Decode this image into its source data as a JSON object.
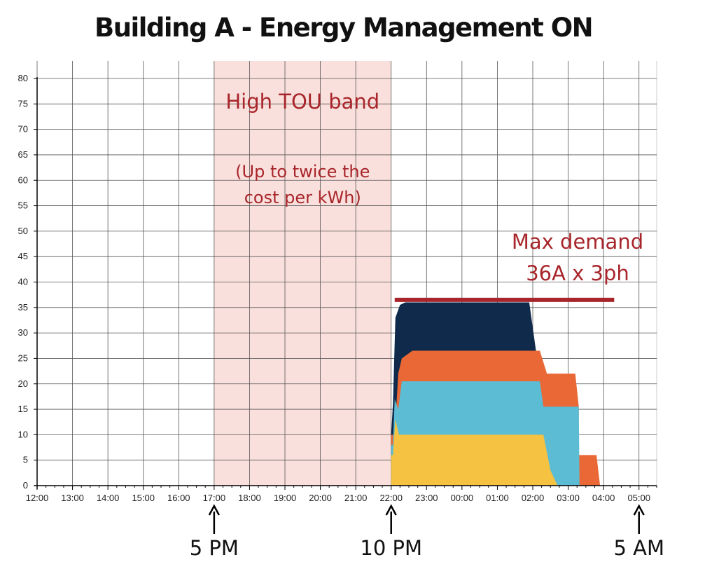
{
  "chart_data": {
    "type": "area",
    "title": "Building A - Energy Management ON",
    "xlabel": "",
    "ylabel": "",
    "x_ticks": [
      "12:00",
      "13:00",
      "14:00",
      "15:00",
      "16:00",
      "17:00",
      "18:00",
      "19:00",
      "20:00",
      "21:00",
      "22:00",
      "23:00",
      "00:00",
      "01:00",
      "02:00",
      "03:00",
      "04:00",
      "05:00"
    ],
    "y_ticks": [
      0,
      5,
      10,
      15,
      20,
      25,
      30,
      35,
      40,
      45,
      50,
      55,
      60,
      65,
      70,
      75,
      80
    ],
    "ylim": [
      0,
      80
    ],
    "x_range_hours": [
      0,
      17.5
    ],
    "grid": true,
    "stacked": true,
    "colors": {
      "yellow": "#f5c242",
      "blue": "#5bbcd3",
      "orange": "#ea6835",
      "navy": "#0f2a4a",
      "band": "#fae0dc",
      "annotation": "#a8262b",
      "maxline": "#a8262b"
    },
    "series_points": [
      {
        "color": "yellow",
        "x": [
          10.0,
          10.05,
          10.12,
          10.22,
          10.4,
          12.0,
          14.3,
          14.5,
          14.7
        ],
        "y": [
          6,
          6,
          13,
          10,
          10,
          10,
          10,
          3,
          0
        ]
      },
      {
        "color": "blue",
        "top_x": [
          10.0,
          10.05,
          10.1,
          10.2,
          10.3,
          12.0,
          14.2,
          14.3,
          15.2,
          15.3,
          15.32
        ],
        "top_y": [
          8,
          8,
          17,
          15,
          20.5,
          20.5,
          20.5,
          15.5,
          15.5,
          15.5,
          0
        ]
      },
      {
        "color": "orange",
        "top_x": [
          10.0,
          10.1,
          10.2,
          10.3,
          10.6,
          12.0,
          14.0,
          14.2,
          14.4,
          15.2,
          15.3,
          15.3,
          15.8,
          15.9,
          16.0
        ],
        "top_y": [
          10,
          10,
          22,
          25,
          26.5,
          26.5,
          26.5,
          26.5,
          22,
          22,
          15.5,
          6,
          6,
          0,
          0
        ]
      },
      {
        "color": "navy",
        "top_x": [
          10.0,
          10.05,
          10.12,
          10.25,
          10.4,
          12.0,
          13.9,
          14.1,
          14.2
        ],
        "top_y": [
          10,
          16,
          33,
          35.5,
          36,
          36,
          36,
          26,
          26.5
        ]
      }
    ],
    "bands": [
      {
        "from": 5,
        "to": 10,
        "label": "High TOU band",
        "sublabel_1": "(Up to twice the",
        "sublabel_2": "cost per kWh)"
      }
    ],
    "reference_lines": [
      {
        "y": 36.5,
        "x_from": 10.1,
        "x_to": 16.3,
        "label_1": "Max demand",
        "label_2": "36A x 3ph"
      }
    ],
    "markers": [
      {
        "x": 5,
        "label": "5 PM"
      },
      {
        "x": 10,
        "label": "10 PM"
      },
      {
        "x": 17,
        "label": "5 AM"
      }
    ]
  }
}
